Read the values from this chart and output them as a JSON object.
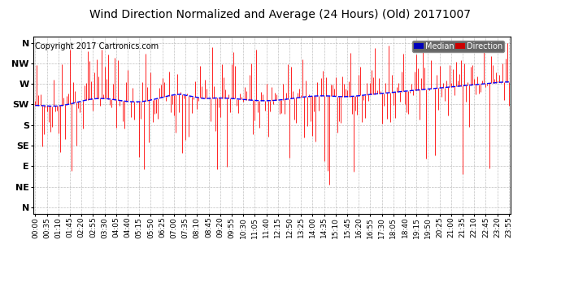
{
  "title": "Wind Direction Normalized and Average (24 Hours) (Old) 20171007",
  "copyright": "Copyright 2017 Cartronics.com",
  "ytick_labels": [
    "N",
    "NW",
    "W",
    "SW",
    "S",
    "SE",
    "E",
    "NE",
    "N"
  ],
  "ytick_values": [
    0,
    1,
    2,
    3,
    4,
    5,
    6,
    7,
    8
  ],
  "background_color": "#ffffff",
  "plot_bg_color": "#ffffff",
  "grid_color": "#b0b0b0",
  "line_color_red": "#ff0000",
  "line_color_blue": "#0000ff",
  "line_color_dark": "#333333",
  "title_fontsize": 10,
  "copyright_fontsize": 7,
  "tick_fontsize": 6.5,
  "ylabel_fontsize": 8
}
